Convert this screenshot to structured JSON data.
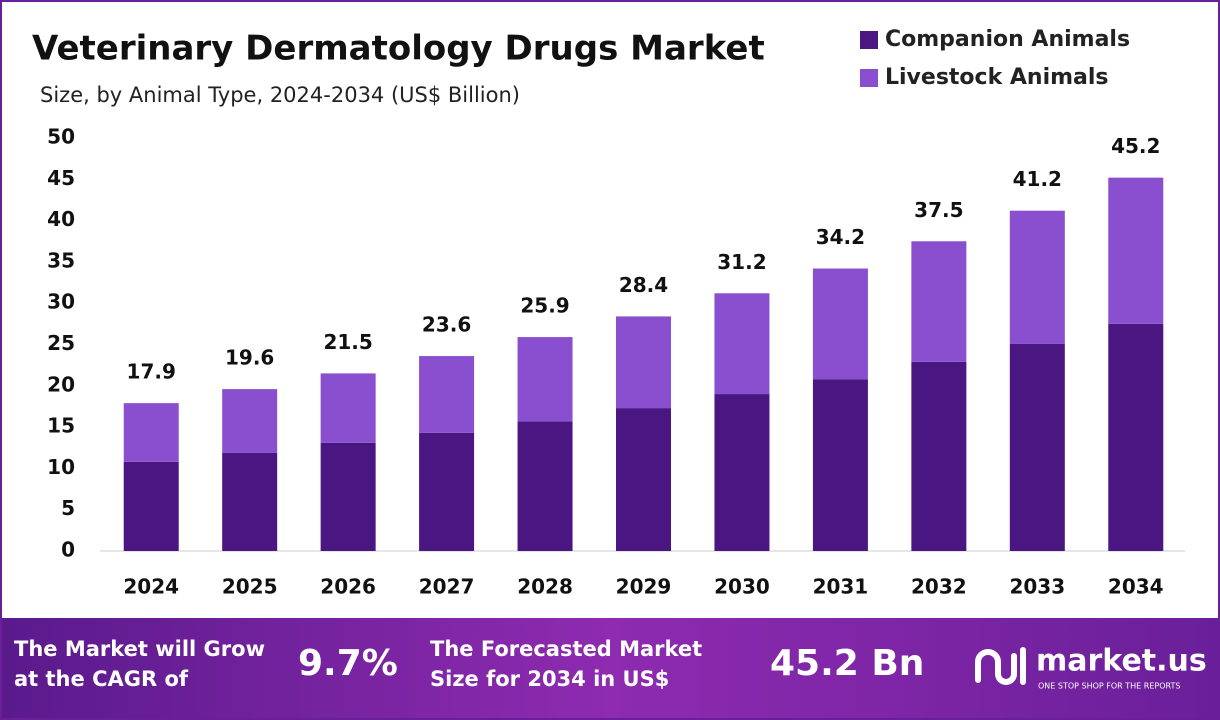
{
  "chart_data": {
    "type": "stacked-bar",
    "title": "Veterinary Dermatology Drugs Market",
    "subtitle": "Size, by Animal Type, 2024-2034 (US$ Billion)",
    "categories": [
      "2024",
      "2025",
      "2026",
      "2027",
      "2028",
      "2029",
      "2030",
      "2031",
      "2032",
      "2033",
      "2034"
    ],
    "series": [
      {
        "name": "Companion Animals",
        "color": "#4a1682",
        "values": [
          10.8,
          11.9,
          13.1,
          14.3,
          15.7,
          17.3,
          19.0,
          20.8,
          22.9,
          25.1,
          27.5
        ]
      },
      {
        "name": "Livestock Animals",
        "color": "#8a4fcf",
        "values": [
          7.1,
          7.7,
          8.4,
          9.3,
          10.2,
          11.1,
          12.2,
          13.4,
          14.6,
          16.1,
          17.7
        ]
      }
    ],
    "totals": [
      17.9,
      19.6,
      21.5,
      23.6,
      25.9,
      28.4,
      31.2,
      34.2,
      37.5,
      41.2,
      45.2
    ],
    "ylim": [
      0,
      50
    ],
    "yticks": [
      0,
      5,
      10,
      15,
      20,
      25,
      30,
      35,
      40,
      45,
      50
    ],
    "legend": "top-right"
  },
  "footer": {
    "cagr_text": [
      "The Market will Grow",
      "at the CAGR of"
    ],
    "cagr": "9.7%",
    "forecast_text": [
      "The Forecasted Market",
      "Size for 2034 in US$"
    ],
    "forecast": "45.2 Bn",
    "brand": "market.us",
    "tagline": "ONE STOP SHOP FOR THE REPORTS"
  }
}
